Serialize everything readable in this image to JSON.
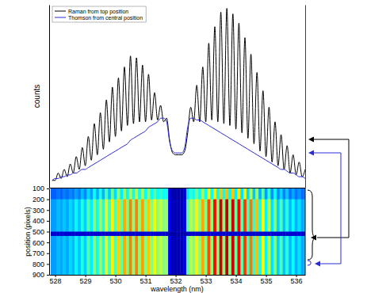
{
  "chart_data": [
    {
      "type": "line",
      "ylabel": "counts",
      "x": [
        527.9,
        528,
        528.1,
        528.2,
        528.3,
        528.4,
        528.5,
        528.6,
        528.7,
        528.8,
        528.9,
        529,
        529.1,
        529.2,
        529.3,
        529.4,
        529.5,
        529.6,
        529.7,
        529.8,
        529.9,
        530,
        530.1,
        530.2,
        530.3,
        530.4,
        530.5,
        530.6,
        530.7,
        530.8,
        530.9,
        531,
        531.1,
        531.2,
        531.3,
        531.4,
        531.5,
        531.6,
        531.7,
        531.8,
        531.9,
        532,
        532.1,
        532.2,
        532.3,
        532.4,
        532.5,
        532.6,
        532.7,
        532.8,
        532.9,
        533,
        533.1,
        533.2,
        533.3,
        533.4,
        533.5,
        533.6,
        533.7,
        533.8,
        533.9,
        534,
        534.1,
        534.2,
        534.3,
        534.4,
        534.5,
        534.6,
        534.7,
        534.8,
        534.9,
        535,
        535.1,
        535.2,
        535.3,
        535.4,
        535.5,
        535.6,
        535.7,
        535.8,
        535.9,
        536,
        536.1,
        536.2,
        536.3
      ],
      "series": [
        {
          "name": "Raman from top position",
          "color": "#000000",
          "values": [
            4,
            4,
            8,
            5,
            10,
            6,
            13,
            8,
            17,
            10,
            22,
            12,
            28,
            15,
            35,
            18,
            41,
            21,
            48,
            25,
            55,
            28,
            60,
            31,
            66,
            34,
            72,
            35,
            71,
            36,
            67,
            36,
            62,
            37,
            52,
            37,
            45,
            36,
            38,
            26,
            19,
            18,
            18,
            18,
            20,
            30,
            44,
            36,
            56,
            36,
            66,
            36,
            79,
            37,
            88,
            36,
            96,
            35,
            98,
            34,
            95,
            32,
            90,
            30,
            82,
            27,
            73,
            24,
            63,
            20,
            53,
            17,
            44,
            14,
            36,
            12,
            29,
            10,
            23,
            8,
            18,
            7,
            14,
            6,
            10
          ]
        },
        {
          "name": "Thomson from central position",
          "color": "#2a2ad6",
          "axis": "y2",
          "values": [
            4,
            5,
            5,
            6,
            6,
            7,
            7,
            8,
            8,
            9,
            10,
            10,
            11,
            12,
            13,
            14,
            15,
            16,
            17,
            18,
            19,
            20,
            21,
            22,
            23,
            24,
            26,
            27,
            28,
            29,
            30,
            31,
            33,
            34,
            35,
            36,
            38,
            38,
            36,
            25,
            20,
            19,
            19,
            19,
            22,
            33,
            38,
            38,
            37,
            37,
            36,
            35,
            34,
            33,
            32,
            31,
            30,
            29,
            28,
            27,
            26,
            25,
            24,
            23,
            22,
            21,
            20,
            19,
            18,
            17,
            16,
            15,
            14,
            13,
            12,
            11,
            10,
            10,
            9,
            8,
            8,
            7,
            6,
            6,
            5
          ]
        }
      ],
      "xlim": [
        527.8,
        536.3
      ],
      "ylim": [
        0,
        100
      ],
      "y2lim": [
        0,
        100
      ],
      "legend": "upper left",
      "tick_labels": false
    },
    {
      "type": "heatmap",
      "xlabel": "wavelength (nm)",
      "ylabel": "position (pixels)",
      "x": [
        527.9,
        528,
        528.1,
        528.2,
        528.3,
        528.4,
        528.5,
        528.6,
        528.7,
        528.8,
        528.9,
        529,
        529.1,
        529.2,
        529.3,
        529.4,
        529.5,
        529.6,
        529.7,
        529.8,
        529.9,
        530,
        530.1,
        530.2,
        530.3,
        530.4,
        530.5,
        530.6,
        530.7,
        530.8,
        530.9,
        531,
        531.1,
        531.2,
        531.3,
        531.4,
        531.5,
        531.6,
        531.7,
        531.8,
        531.9,
        532,
        532.1,
        532.2,
        532.3,
        532.4,
        532.5,
        532.6,
        532.7,
        532.8,
        532.9,
        533,
        533.1,
        533.2,
        533.3,
        533.4,
        533.5,
        533.6,
        533.7,
        533.8,
        533.9,
        534,
        534.1,
        534.2,
        534.3,
        534.4,
        534.5,
        534.6,
        534.7,
        534.8,
        534.9,
        535,
        535.1,
        535.2,
        535.3,
        535.4,
        535.5,
        535.6,
        535.7,
        535.8,
        535.9,
        536,
        536.1,
        536.2,
        536.3
      ],
      "ybins": [
        100,
        200,
        500,
        540,
        900
      ],
      "z": [
        [
          22,
          22,
          24,
          22,
          25,
          23,
          26,
          24,
          28,
          25,
          31,
          26,
          34,
          28,
          38,
          29,
          40,
          30,
          44,
          32,
          48,
          34,
          50,
          36,
          53,
          37,
          56,
          38,
          56,
          38,
          54,
          38,
          51,
          38,
          46,
          38,
          42,
          38,
          39,
          10,
          5,
          4,
          4,
          5,
          8,
          35,
          42,
          38,
          48,
          38,
          53,
          38,
          60,
          38,
          64,
          38,
          68,
          38,
          69,
          37,
          68,
          36,
          65,
          35,
          61,
          34,
          56,
          32,
          52,
          30,
          46,
          28,
          42,
          27,
          38,
          26,
          34,
          25,
          32,
          24,
          29,
          24,
          27,
          23,
          25
        ],
        [
          28,
          28,
          31,
          29,
          32,
          29,
          34,
          31,
          37,
          32,
          40,
          33,
          45,
          36,
          50,
          38,
          54,
          40,
          59,
          43,
          64,
          45,
          67,
          47,
          71,
          49,
          75,
          50,
          75,
          50,
          72,
          50,
          68,
          51,
          61,
          51,
          57,
          50,
          52,
          12,
          6,
          5,
          5,
          6,
          10,
          46,
          56,
          50,
          64,
          50,
          71,
          50,
          80,
          51,
          87,
          50,
          92,
          50,
          94,
          49,
          92,
          47,
          88,
          46,
          82,
          44,
          76,
          42,
          69,
          39,
          62,
          37,
          56,
          35,
          50,
          33,
          45,
          32,
          41,
          31,
          38,
          30,
          35,
          29,
          32
        ],
        [
          8,
          8,
          8,
          8,
          8,
          8,
          8,
          8,
          8,
          8,
          8,
          8,
          8,
          8,
          8,
          8,
          8,
          8,
          8,
          8,
          8,
          8,
          8,
          8,
          8,
          8,
          8,
          8,
          8,
          8,
          8,
          8,
          8,
          8,
          8,
          8,
          8,
          8,
          8,
          4,
          4,
          4,
          4,
          4,
          4,
          8,
          8,
          8,
          8,
          8,
          8,
          8,
          8,
          8,
          8,
          8,
          8,
          8,
          8,
          8,
          8,
          8,
          8,
          8,
          8,
          8,
          8,
          8,
          8,
          8,
          8,
          8,
          8,
          8,
          8,
          8,
          8,
          8,
          8,
          8,
          8,
          8,
          8,
          8,
          8
        ],
        [
          28,
          28,
          31,
          29,
          32,
          29,
          34,
          31,
          37,
          32,
          40,
          33,
          45,
          36,
          50,
          38,
          54,
          40,
          59,
          43,
          64,
          45,
          67,
          47,
          71,
          49,
          75,
          50,
          75,
          50,
          72,
          50,
          68,
          51,
          61,
          51,
          57,
          50,
          52,
          12,
          6,
          5,
          5,
          6,
          10,
          46,
          56,
          50,
          64,
          50,
          71,
          50,
          80,
          51,
          87,
          50,
          92,
          50,
          94,
          49,
          92,
          47,
          88,
          46,
          82,
          44,
          76,
          42,
          69,
          39,
          62,
          37,
          56,
          35,
          50,
          33,
          45,
          32,
          41,
          31,
          38,
          30,
          35,
          29,
          32
        ]
      ],
      "zlim": [
        0,
        100
      ],
      "xlim": [
        527.8,
        536.3
      ],
      "ylim": [
        100,
        900
      ],
      "xticks": [
        528,
        529,
        530,
        531,
        532,
        533,
        534,
        535,
        536
      ],
      "yticks": [
        100,
        200,
        300,
        400,
        500,
        600,
        700,
        800,
        900
      ]
    }
  ]
}
